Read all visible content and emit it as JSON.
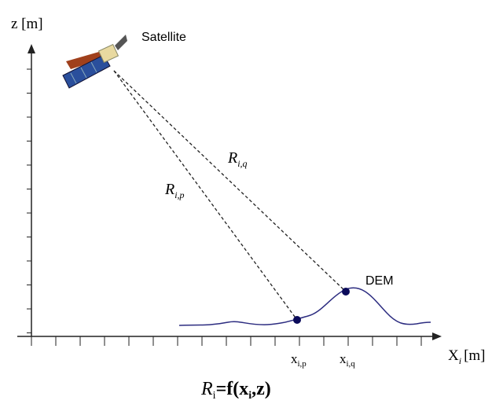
{
  "axes": {
    "y_label": "z [m]",
    "x_label": {
      "main": "X",
      "sub": "i",
      "unit": "[m]"
    }
  },
  "labels": {
    "satellite": "Satellite",
    "dem": "DEM",
    "range_q": {
      "main": "R",
      "sub": "i,q"
    },
    "range_p": {
      "main": "R",
      "sub": "i,p"
    },
    "point_p": {
      "main": "x",
      "sub": "i,p"
    },
    "point_q": {
      "main": "x",
      "sub": "i,q"
    }
  },
  "formula": {
    "parts": [
      "R",
      "i",
      "=f(x",
      "i",
      ",z)"
    ]
  }
}
